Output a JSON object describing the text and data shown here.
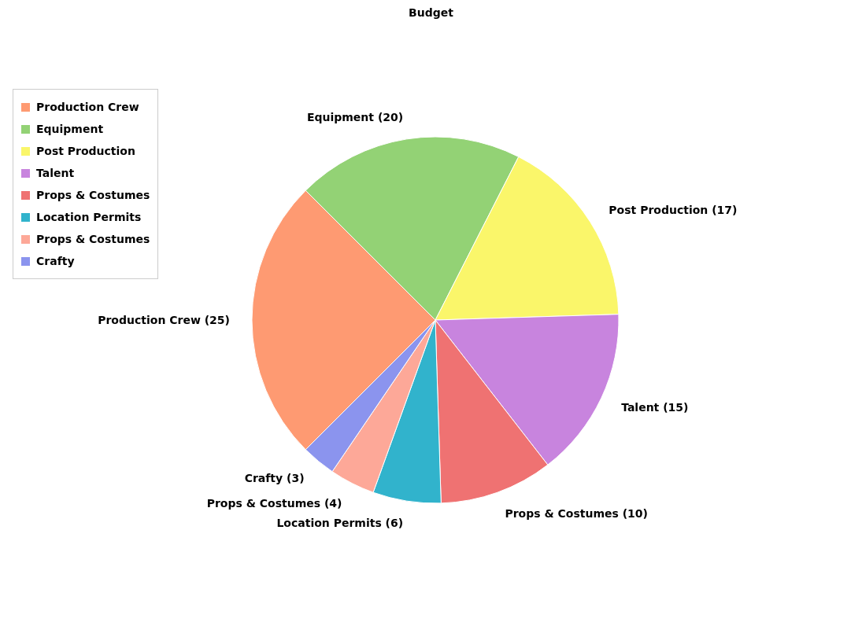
{
  "chart_data": {
    "type": "pie",
    "title": "Budget",
    "categories": [
      "Production Crew",
      "Equipment",
      "Post Production",
      "Talent",
      "Props & Costumes",
      "Location Permits",
      "Props & Costumes",
      "Crafty"
    ],
    "values": [
      25,
      20,
      17,
      15,
      10,
      6,
      4,
      3
    ],
    "colors": [
      "#fe9a72",
      "#93d275",
      "#faf66a",
      "#c884de",
      "#ef7272",
      "#31b3cc",
      "#fda898",
      "#8b94ee"
    ],
    "value_labels": [
      "(25)",
      "(20)",
      "(17)",
      "(15)",
      "(10)",
      "(6)",
      "(4)",
      "(3)"
    ],
    "legend": "top left"
  }
}
